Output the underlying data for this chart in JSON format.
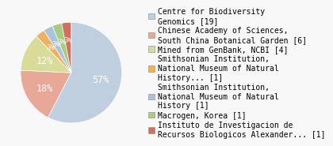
{
  "labels": [
    "Centre for Biodiversity\nGenomics [19]",
    "Chinese Academy of Sciences,\nSouth China Botanical Garden [6]",
    "Mined from GenBank, NCBI [4]",
    "Smithsonian Institution,\nNational Museum of Natural\nHistory... [1]",
    "Smithsonian Institution,\nNational Museum of Natural\nHistory [1]",
    "Macrogen, Korea [1]",
    "Instituto de Investigacion de\nRecursos Biologicos Alexander... [1]"
  ],
  "values": [
    19,
    6,
    4,
    1,
    1,
    1,
    1
  ],
  "colors": [
    "#c0cfe0",
    "#e8a898",
    "#d8dc98",
    "#f0b060",
    "#a8c4dc",
    "#a8cc80",
    "#d07060"
  ],
  "pct_labels": [
    "57%",
    "18%",
    "12%",
    "3%",
    "3%",
    "3%",
    "3%"
  ],
  "startangle": 90,
  "background_color": "#f8f8f8",
  "font_size": 7.0,
  "pct_font_size": 8.5,
  "pct_small_font_size": 6.5
}
